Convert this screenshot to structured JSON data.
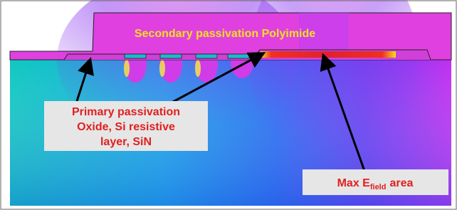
{
  "labels": {
    "secondary": "Secondary passivation Polyimide",
    "primary": [
      "Primary passivation",
      "Oxide, Si resistive",
      "layer, SiN"
    ],
    "max_field": [
      "Max E",
      "field",
      "area"
    ]
  }
}
